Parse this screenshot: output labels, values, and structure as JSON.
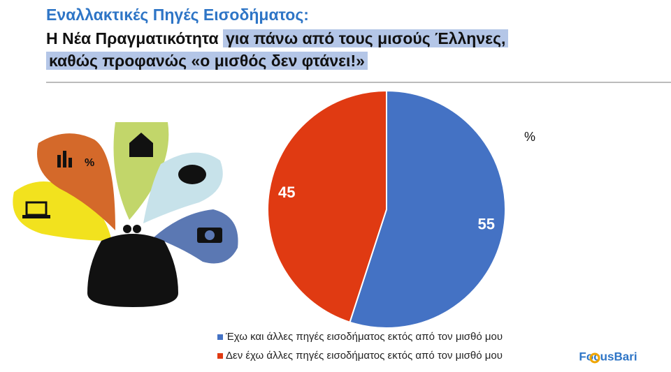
{
  "chart_data": {
    "type": "pie",
    "title": "Εναλλακτικές Πηγές Εισοδήματος:",
    "subtitle": [
      "Η Νέα Πραγματικότητα",
      "για πάνω από τους μισούς Έλληνες,",
      "καθώς προφανώς «ο μισθός δεν φτάνει!»"
    ],
    "unit": "%",
    "categories": [
      "Έχω και άλλες πηγές εισοδήματος εκτός από τον μισθό μου",
      "Δεν έχω άλλες πηγές εισοδήματος εκτός από τον μισθό μου"
    ],
    "values": [
      55,
      45
    ],
    "colors": [
      "#4472c4",
      "#e03a12"
    ],
    "legend": "bottom"
  },
  "logo": "FocusBari"
}
